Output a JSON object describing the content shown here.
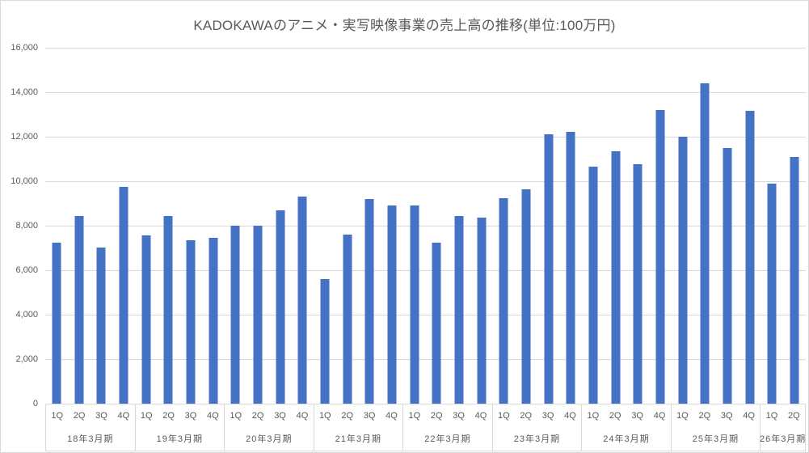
{
  "colors": {
    "bar": "#4472C4",
    "gridline": "#D9D9D9",
    "axis_line": "#D9D9D9",
    "text": "#595959",
    "background": "#FFFFFF"
  },
  "chart_data": {
    "type": "bar",
    "title": "KADOKAWAのアニメ・実写映像事業の売上高の推移(単位:100万円)",
    "xlabel": "",
    "ylabel": "",
    "ylim": [
      0,
      16000
    ],
    "y_step": 2000,
    "y_tick_labels": [
      "0",
      "2,000",
      "4,000",
      "6,000",
      "8,000",
      "10,000",
      "12,000",
      "14,000",
      "16,000"
    ],
    "grid": "horizontal",
    "legend": "none",
    "groups": [
      {
        "label": "18年3月期",
        "quarters": [
          "1Q",
          "2Q",
          "3Q",
          "4Q"
        ],
        "values": [
          7250,
          8450,
          7000,
          9750
        ]
      },
      {
        "label": "19年3月期",
        "quarters": [
          "1Q",
          "2Q",
          "3Q",
          "4Q"
        ],
        "values": [
          7550,
          8450,
          7350,
          7450
        ]
      },
      {
        "label": "20年3月期",
        "quarters": [
          "1Q",
          "2Q",
          "3Q",
          "4Q"
        ],
        "values": [
          8000,
          8000,
          8700,
          9300
        ]
      },
      {
        "label": "21年3月期",
        "quarters": [
          "1Q",
          "2Q",
          "3Q",
          "4Q"
        ],
        "values": [
          5600,
          7600,
          9200,
          8900
        ]
      },
      {
        "label": "22年3月期",
        "quarters": [
          "1Q",
          "2Q",
          "3Q",
          "4Q"
        ],
        "values": [
          8900,
          7250,
          8450,
          8350
        ]
      },
      {
        "label": "23年3月期",
        "quarters": [
          "1Q",
          "2Q",
          "3Q",
          "4Q"
        ],
        "values": [
          9250,
          9650,
          12100,
          12200
        ]
      },
      {
        "label": "24年3月期",
        "quarters": [
          "1Q",
          "2Q",
          "3Q",
          "4Q"
        ],
        "values": [
          10650,
          11350,
          10750,
          13200
        ]
      },
      {
        "label": "25年3月期",
        "quarters": [
          "1Q",
          "2Q",
          "3Q",
          "4Q"
        ],
        "values": [
          12000,
          14400,
          11500,
          13150
        ]
      },
      {
        "label": "26年3月期",
        "quarters": [
          "1Q",
          "2Q"
        ],
        "values": [
          9900,
          11100
        ]
      }
    ]
  }
}
